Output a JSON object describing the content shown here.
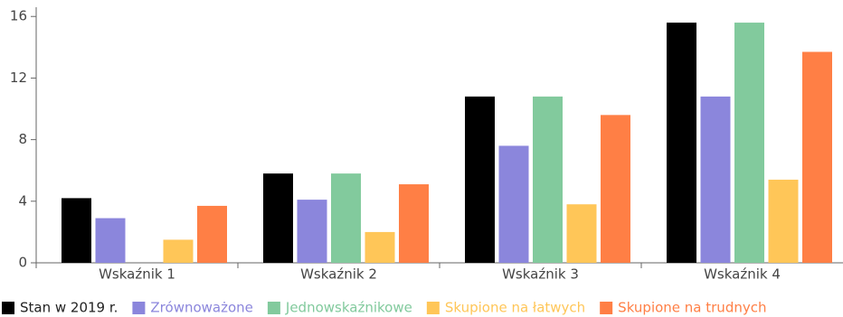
{
  "chart_data": {
    "type": "bar",
    "categories": [
      "Wskaźnik 1",
      "Wskaźnik 2",
      "Wskaźnik 3",
      "Wskaźnik 4"
    ],
    "series": [
      {
        "name": "Stan w 2019 r.",
        "color": "#000000",
        "text_color": "#222222",
        "values": [
          4.2,
          5.8,
          10.8,
          15.6
        ]
      },
      {
        "name": "Zrównoważone",
        "color": "#8b86dc",
        "text_color": "#8b86dc",
        "values": [
          2.9,
          4.1,
          7.6,
          10.8
        ]
      },
      {
        "name": "Jednowskaźnikowe",
        "color": "#82ca9d",
        "text_color": "#82ca9d",
        "values": [
          0,
          5.8,
          10.8,
          15.6
        ]
      },
      {
        "name": "Skupione na łatwych",
        "color": "#ffc658",
        "text_color": "#ffc658",
        "values": [
          1.5,
          2.0,
          3.8,
          5.4
        ]
      },
      {
        "name": "Skupione na trudnych",
        "color": "#ff7f45",
        "text_color": "#ff7f45",
        "values": [
          3.7,
          5.1,
          9.6,
          13.7
        ]
      }
    ],
    "yticks": [
      "0",
      "4",
      "8",
      "12",
      "16"
    ],
    "ylim": [
      0,
      16.6
    ],
    "grid": false,
    "legend_position": "bottom",
    "title": "",
    "xlabel": "",
    "ylabel": ""
  }
}
